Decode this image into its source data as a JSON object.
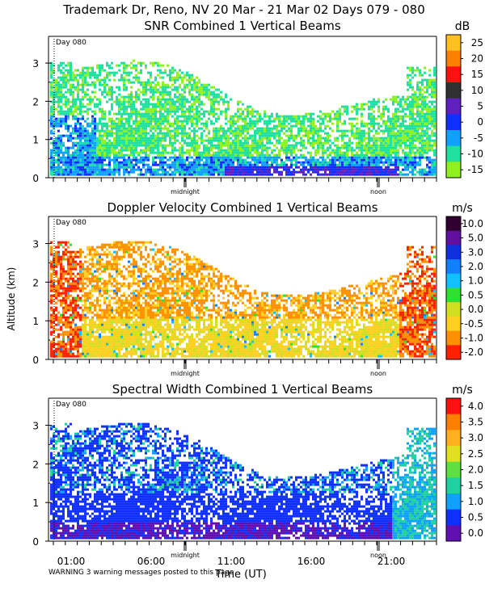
{
  "header": {
    "title": "Trademark Dr, Reno, NV  20 Mar - 21 Mar 02 Days 079 - 080",
    "warning": "WARNING  3 warning messages posted to this page"
  },
  "shared": {
    "ylabel": "Altitude (km)",
    "xlabel": "Time (UT)",
    "day_label": "Day 080",
    "midnight_label": "midnight",
    "noon_label": "noon",
    "x_tick_labels": [
      "01:00",
      "06:00",
      "11:00",
      "16:00",
      "21:00"
    ],
    "y_tick_labels": [
      "0",
      "1",
      "2",
      "3"
    ]
  },
  "chart_data": [
    {
      "type": "heatmap",
      "title": "SNR Combined 1 Vertical Beams",
      "unit": "dB",
      "ylim": [
        0,
        3.7
      ],
      "xlim_hours": [
        23.5,
        24.3
      ],
      "colorbar_labels": [
        "25",
        "20",
        "15",
        "10",
        "5",
        "0",
        "-5",
        "-10",
        "-15"
      ],
      "colorbar_colors": [
        "#ffc020",
        "#ff8000",
        "#ff1010",
        "#303030",
        "#6020c0",
        "#1030ff",
        "#10a0ff",
        "#20e0a0",
        "#90f020"
      ]
    },
    {
      "type": "heatmap",
      "title": "Doppler Velocity Combined 1 Vertical Beams",
      "unit": "m/s",
      "ylim": [
        0,
        3.7
      ],
      "colorbar_labels": [
        "10.0",
        "5.0",
        "3.0",
        "2.0",
        "1.0",
        "0.5",
        "0.0",
        "-0.5",
        "-1.0",
        "-2.0"
      ],
      "colorbar_colors": [
        "#300030",
        "#6010a0",
        "#1030e0",
        "#1080ff",
        "#10c0ff",
        "#30e030",
        "#d0e020",
        "#ffd020",
        "#ff9000",
        "#ff2000"
      ]
    },
    {
      "type": "heatmap",
      "title": "Spectral Width Combined 1 Vertical Beams",
      "unit": "m/s",
      "ylim": [
        0,
        3.7
      ],
      "colorbar_labels": [
        "4.0",
        "3.5",
        "3.0",
        "2.5",
        "2.0",
        "1.5",
        "1.0",
        "0.5",
        "0.0"
      ],
      "colorbar_colors": [
        "#ff1010",
        "#ff8000",
        "#ffb020",
        "#e0e020",
        "#60e040",
        "#20d0a0",
        "#10a0ff",
        "#1030ff",
        "#6010b0"
      ]
    }
  ]
}
